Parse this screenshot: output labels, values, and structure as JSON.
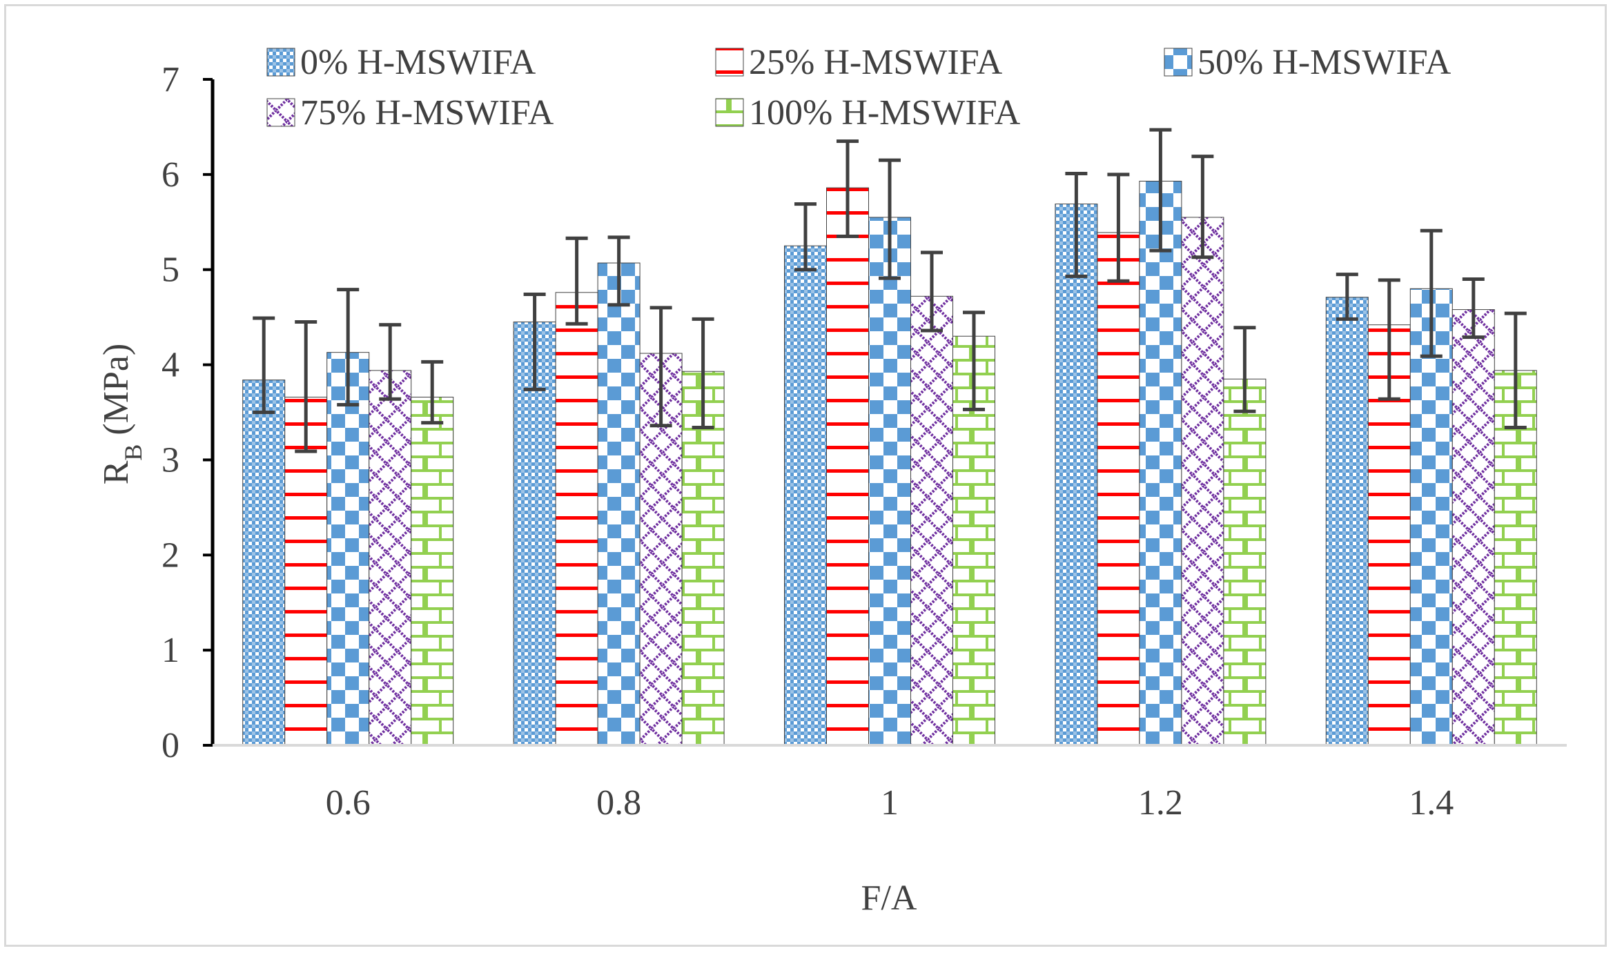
{
  "chart_data": {
    "type": "bar",
    "title": "",
    "xlabel": "F/A",
    "ylabel_main": "R",
    "ylabel_sub": "B",
    "ylabel_unit": " (MPa)",
    "ylim": [
      0,
      7
    ],
    "yticks": [
      "0",
      "1",
      "2",
      "3",
      "4",
      "5",
      "6",
      "7"
    ],
    "categories": [
      "0.6",
      "0.8",
      "1",
      "1.2",
      "1.4"
    ],
    "legend_position": "top",
    "series": [
      {
        "name": "0% H-MSWIFA",
        "color": "#5b9bd5",
        "pattern": "dots",
        "values": [
          3.84,
          4.45,
          5.25,
          5.69,
          4.71
        ],
        "err_high": [
          4.49,
          4.74,
          5.69,
          6.01,
          4.95
        ],
        "err_low": [
          3.5,
          3.74,
          5.0,
          4.93,
          4.48
        ]
      },
      {
        "name": "25% H-MSWIFA",
        "color": "#ff0000",
        "pattern": "hstripes",
        "values": [
          3.66,
          4.76,
          5.86,
          5.39,
          4.42
        ],
        "err_high": [
          4.45,
          5.33,
          6.35,
          6.0,
          4.89
        ],
        "err_low": [
          3.09,
          4.43,
          5.35,
          4.88,
          3.64
        ]
      },
      {
        "name": "50% H-MSWIFA",
        "color": "#5b9bd5",
        "pattern": "checker",
        "values": [
          4.13,
          5.07,
          5.55,
          5.93,
          4.8
        ],
        "err_high": [
          4.79,
          5.34,
          6.15,
          6.47,
          5.41
        ],
        "err_low": [
          3.58,
          4.63,
          4.91,
          5.2,
          4.09
        ]
      },
      {
        "name": "75% H-MSWIFA",
        "color": "#7030a0",
        "pattern": "diamond",
        "values": [
          3.94,
          4.12,
          4.72,
          5.55,
          4.58
        ],
        "err_high": [
          4.42,
          4.6,
          5.18,
          6.19,
          4.9
        ],
        "err_low": [
          3.64,
          3.36,
          4.36,
          5.13,
          4.29
        ]
      },
      {
        "name": "100% H-MSWIFA",
        "color": "#92d050",
        "pattern": "brick",
        "values": [
          3.66,
          3.93,
          4.3,
          3.85,
          3.94
        ],
        "err_high": [
          4.03,
          4.48,
          4.55,
          4.39,
          4.54
        ],
        "err_low": [
          3.39,
          3.34,
          3.53,
          3.51,
          3.34
        ]
      }
    ]
  }
}
